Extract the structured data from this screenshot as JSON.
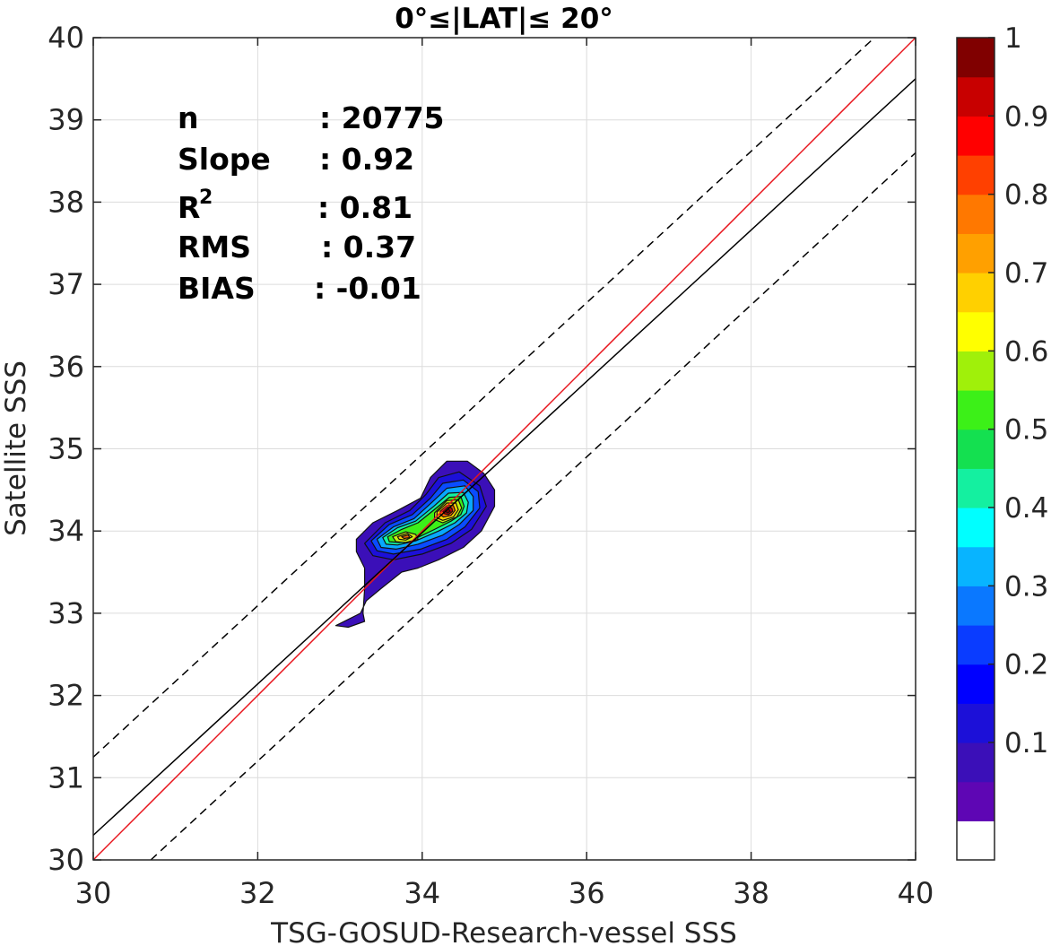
{
  "chart_data": {
    "type": "contour-scatter",
    "title": "0°≤|LAT|≤ 20°",
    "xlabel": "TSG-GOSUD-Research-vessel SSS",
    "ylabel": "Satellite SSS",
    "xlim": [
      30,
      40
    ],
    "ylim": [
      30,
      40
    ],
    "xticks": [
      "30",
      "32",
      "34",
      "36",
      "38",
      "40"
    ],
    "yticks": [
      "30",
      "31",
      "32",
      "33",
      "34",
      "35",
      "36",
      "37",
      "38",
      "39",
      "40"
    ],
    "grid": true,
    "stats": {
      "n_label": "n",
      "n_value": ": 20775",
      "slope_label": "Slope",
      "slope_value": ": 0.92",
      "r2_label": "R",
      "r2_sup": "2",
      "r2_value": ": 0.81",
      "rms_label": "RMS",
      "rms_value": ": 0.37",
      "bias_label": "BIAS",
      "bias_value": ": -0.01"
    },
    "lines": {
      "identity": {
        "color": "#e8141c",
        "from": [
          30,
          30
        ],
        "to": [
          40,
          40
        ]
      },
      "regression": {
        "color": "#000000",
        "style": "solid",
        "from": [
          30,
          30.3
        ],
        "to": [
          40,
          39.5
        ]
      },
      "upper_bound": {
        "color": "#000000",
        "style": "dashed",
        "from": [
          30,
          31.25
        ],
        "to": [
          39.5,
          40
        ]
      },
      "lower_bound": {
        "color": "#000000",
        "style": "dashed",
        "from": [
          30.7,
          30
        ],
        "to": [
          40,
          38.6
        ]
      }
    },
    "density_peaks": [
      {
        "x": 34.3,
        "y": 34.25,
        "density": 1.0
      },
      {
        "x": 33.8,
        "y": 33.93,
        "density": 0.85
      }
    ],
    "contour_levels": [
      {
        "level": 0.05,
        "color": "#3b0fb8",
        "points": [
          [
            32.95,
            32.85
          ],
          [
            33.1,
            32.83
          ],
          [
            33.3,
            32.9
          ],
          [
            33.28,
            33.0
          ],
          [
            33.3,
            33.3
          ],
          [
            33.3,
            33.55
          ],
          [
            33.2,
            33.75
          ],
          [
            33.2,
            33.9
          ],
          [
            33.4,
            34.1
          ],
          [
            33.7,
            34.25
          ],
          [
            33.98,
            34.4
          ],
          [
            34.1,
            34.65
          ],
          [
            34.3,
            34.85
          ],
          [
            34.55,
            34.85
          ],
          [
            34.75,
            34.7
          ],
          [
            34.88,
            34.5
          ],
          [
            34.88,
            34.3
          ],
          [
            34.72,
            34.0
          ],
          [
            34.5,
            33.8
          ],
          [
            34.2,
            33.65
          ],
          [
            33.95,
            33.55
          ],
          [
            33.75,
            33.5
          ],
          [
            33.5,
            33.3
          ],
          [
            33.32,
            33.15
          ],
          [
            33.25,
            33.0
          ]
        ]
      },
      {
        "level": 0.15,
        "color": "#1c10d8",
        "points": [
          [
            33.3,
            33.85
          ],
          [
            33.55,
            34.1
          ],
          [
            33.85,
            34.25
          ],
          [
            34.05,
            34.45
          ],
          [
            34.2,
            34.65
          ],
          [
            34.45,
            34.72
          ],
          [
            34.7,
            34.55
          ],
          [
            34.78,
            34.3
          ],
          [
            34.6,
            34.02
          ],
          [
            34.35,
            33.85
          ],
          [
            34.0,
            33.72
          ],
          [
            33.65,
            33.65
          ],
          [
            33.4,
            33.7
          ]
        ]
      },
      {
        "level": 0.25,
        "color": "#0a4cff",
        "points": [
          [
            33.38,
            33.88
          ],
          [
            33.6,
            34.08
          ],
          [
            33.88,
            34.2
          ],
          [
            34.1,
            34.4
          ],
          [
            34.25,
            34.58
          ],
          [
            34.5,
            34.62
          ],
          [
            34.68,
            34.48
          ],
          [
            34.7,
            34.28
          ],
          [
            34.52,
            34.05
          ],
          [
            34.3,
            33.9
          ],
          [
            33.98,
            33.78
          ],
          [
            33.65,
            33.72
          ],
          [
            33.45,
            33.76
          ]
        ]
      },
      {
        "level": 0.35,
        "color": "#08a8ff",
        "points": [
          [
            33.45,
            33.9
          ],
          [
            33.65,
            34.05
          ],
          [
            33.9,
            34.15
          ],
          [
            34.12,
            34.35
          ],
          [
            34.3,
            34.52
          ],
          [
            34.52,
            34.55
          ],
          [
            34.62,
            34.42
          ],
          [
            34.62,
            34.25
          ],
          [
            34.45,
            34.08
          ],
          [
            34.25,
            33.95
          ],
          [
            33.95,
            33.84
          ],
          [
            33.68,
            33.78
          ],
          [
            33.5,
            33.8
          ]
        ]
      },
      {
        "level": 0.45,
        "color": "#14f0a0",
        "points": [
          [
            33.52,
            33.92
          ],
          [
            33.7,
            34.04
          ],
          [
            33.92,
            34.12
          ],
          [
            34.14,
            34.3
          ],
          [
            34.32,
            34.46
          ],
          [
            34.5,
            34.47
          ],
          [
            34.56,
            34.35
          ],
          [
            34.54,
            34.22
          ],
          [
            34.4,
            34.1
          ],
          [
            34.2,
            34.0
          ],
          [
            33.92,
            33.88
          ],
          [
            33.7,
            33.83
          ],
          [
            33.56,
            33.84
          ]
        ]
      },
      {
        "level": 0.55,
        "color": "#3cf018",
        "points": [
          [
            33.58,
            33.93
          ],
          [
            33.75,
            34.02
          ],
          [
            33.95,
            34.1
          ],
          [
            34.16,
            34.27
          ],
          [
            34.33,
            34.41
          ],
          [
            34.47,
            34.42
          ],
          [
            34.51,
            34.3
          ],
          [
            34.47,
            34.2
          ],
          [
            34.35,
            34.12
          ],
          [
            34.15,
            34.02
          ],
          [
            33.9,
            33.9
          ],
          [
            33.72,
            33.86
          ],
          [
            33.6,
            33.87
          ]
        ]
      },
      {
        "level": 0.65,
        "color": "#c8f010",
        "points": [
          [
            33.64,
            33.93
          ],
          [
            33.8,
            33.99
          ],
          [
            33.92,
            33.96
          ],
          [
            33.95,
            33.9
          ],
          [
            33.8,
            33.86
          ],
          [
            33.68,
            33.87
          ]
        ]
      },
      {
        "level": 0.65,
        "color": "#c8f010",
        "points": [
          [
            34.15,
            34.22
          ],
          [
            34.3,
            34.37
          ],
          [
            34.44,
            34.38
          ],
          [
            34.48,
            34.28
          ],
          [
            34.42,
            34.17
          ],
          [
            34.25,
            34.1
          ],
          [
            34.15,
            34.14
          ]
        ]
      },
      {
        "level": 0.75,
        "color": "#ffd000",
        "points": [
          [
            33.7,
            33.93
          ],
          [
            33.82,
            33.97
          ],
          [
            33.88,
            33.93
          ],
          [
            33.8,
            33.89
          ],
          [
            33.72,
            33.9
          ]
        ]
      },
      {
        "level": 0.75,
        "color": "#ffd000",
        "points": [
          [
            34.18,
            34.23
          ],
          [
            34.3,
            34.34
          ],
          [
            34.41,
            34.34
          ],
          [
            34.44,
            34.26
          ],
          [
            34.38,
            34.17
          ],
          [
            34.25,
            34.13
          ],
          [
            34.18,
            34.16
          ]
        ]
      },
      {
        "level": 0.85,
        "color": "#ff6400",
        "points": [
          [
            33.75,
            33.93
          ],
          [
            33.83,
            33.95
          ],
          [
            33.85,
            33.92
          ],
          [
            33.78,
            33.91
          ]
        ]
      },
      {
        "level": 0.85,
        "color": "#ff6400",
        "points": [
          [
            34.22,
            34.24
          ],
          [
            34.3,
            34.31
          ],
          [
            34.38,
            34.31
          ],
          [
            34.4,
            34.25
          ],
          [
            34.35,
            34.19
          ],
          [
            34.26,
            34.17
          ],
          [
            34.22,
            34.2
          ]
        ]
      },
      {
        "level": 0.95,
        "color": "#c80000",
        "points": [
          [
            34.25,
            34.24
          ],
          [
            34.31,
            34.29
          ],
          [
            34.36,
            34.28
          ],
          [
            34.37,
            34.24
          ],
          [
            34.32,
            34.2
          ],
          [
            34.27,
            34.21
          ]
        ]
      },
      {
        "level": 1.0,
        "color": "#7a0000",
        "points": [
          [
            34.28,
            34.24
          ],
          [
            34.32,
            34.27
          ],
          [
            34.34,
            34.24
          ],
          [
            34.31,
            34.22
          ]
        ]
      }
    ],
    "colorbar": {
      "range": [
        0,
        1
      ],
      "ticks": [
        "0.1",
        "0.2",
        "0.3",
        "0.4",
        "0.5",
        "0.6",
        "0.7",
        "0.8",
        "0.9",
        "1"
      ],
      "bins": [
        "#ffffff",
        "#5e06b4",
        "#3b0fb8",
        "#1c10d8",
        "#0000ff",
        "#0a3cff",
        "#0a78ff",
        "#08b4ff",
        "#00ffff",
        "#14f0a0",
        "#14e050",
        "#3cf018",
        "#a0f00a",
        "#ffff00",
        "#ffd000",
        "#ffa000",
        "#ff7800",
        "#ff4000",
        "#ff0000",
        "#c80000",
        "#800000"
      ]
    }
  }
}
